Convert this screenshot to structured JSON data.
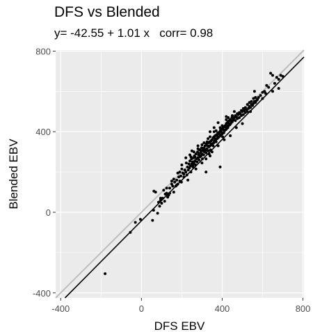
{
  "chart_data": {
    "type": "scatter",
    "title": "DFS vs Blended",
    "subtitle": "y= -42.55 + 1.01 x   corr= 0.98",
    "xlabel": "DFS EBV",
    "ylabel": "Blended EBV",
    "xlim": [
      -425,
      805
    ],
    "ylim": [
      -425,
      805
    ],
    "x_ticks": [
      -400,
      0,
      400,
      800
    ],
    "y_ticks": [
      -400,
      0,
      400,
      800
    ],
    "grid": true,
    "reference_line": {
      "name": "y = x",
      "intercept": 0,
      "slope": 1,
      "color": "#bdbdbd"
    },
    "regression_line": {
      "intercept": -42.55,
      "slope": 1.01,
      "color": "#000000"
    },
    "points_color": "#000000",
    "background_color": "#ebebeb",
    "points": [
      [
        -180,
        -305
      ],
      [
        -55,
        -100
      ],
      [
        -30,
        -50
      ],
      [
        -5,
        -35
      ],
      [
        55,
        -40
      ],
      [
        60,
        10
      ],
      [
        62,
        105
      ],
      [
        70,
        100
      ],
      [
        80,
        -5
      ],
      [
        85,
        50
      ],
      [
        90,
        30
      ],
      [
        95,
        60
      ],
      [
        100,
        45
      ],
      [
        105,
        70
      ],
      [
        110,
        110
      ],
      [
        118,
        90
      ],
      [
        125,
        120
      ],
      [
        130,
        75
      ],
      [
        140,
        95
      ],
      [
        150,
        140
      ],
      [
        155,
        130
      ],
      [
        160,
        100
      ],
      [
        165,
        150
      ],
      [
        170,
        130
      ],
      [
        175,
        160
      ],
      [
        180,
        140
      ],
      [
        185,
        175
      ],
      [
        190,
        155
      ],
      [
        195,
        180
      ],
      [
        198,
        150
      ],
      [
        200,
        215
      ],
      [
        205,
        195
      ],
      [
        210,
        175
      ],
      [
        215,
        210
      ],
      [
        220,
        200
      ],
      [
        222,
        245
      ],
      [
        225,
        185
      ],
      [
        228,
        225
      ],
      [
        232,
        210
      ],
      [
        235,
        240
      ],
      [
        238,
        220
      ],
      [
        240,
        255
      ],
      [
        243,
        230
      ],
      [
        245,
        200
      ],
      [
        248,
        265
      ],
      [
        250,
        240
      ],
      [
        253,
        250
      ],
      [
        255,
        225
      ],
      [
        258,
        270
      ],
      [
        260,
        245
      ],
      [
        262,
        280
      ],
      [
        265,
        255
      ],
      [
        268,
        235
      ],
      [
        270,
        290
      ],
      [
        272,
        265
      ],
      [
        275,
        250
      ],
      [
        278,
        300
      ],
      [
        280,
        270
      ],
      [
        283,
        285
      ],
      [
        285,
        260
      ],
      [
        288,
        310
      ],
      [
        290,
        275
      ],
      [
        292,
        295
      ],
      [
        295,
        280
      ],
      [
        298,
        320
      ],
      [
        300,
        290
      ],
      [
        302,
        265
      ],
      [
        305,
        305
      ],
      [
        308,
        285
      ],
      [
        310,
        320
      ],
      [
        312,
        300
      ],
      [
        315,
        330
      ],
      [
        318,
        310
      ],
      [
        320,
        295
      ],
      [
        322,
        340
      ],
      [
        325,
        315
      ],
      [
        328,
        330
      ],
      [
        330,
        305
      ],
      [
        332,
        345
      ],
      [
        335,
        325
      ],
      [
        338,
        350
      ],
      [
        340,
        330
      ],
      [
        342,
        310
      ],
      [
        345,
        355
      ],
      [
        348,
        335
      ],
      [
        350,
        360
      ],
      [
        352,
        340
      ],
      [
        355,
        370
      ],
      [
        358,
        345
      ],
      [
        360,
        375
      ],
      [
        362,
        355
      ],
      [
        365,
        380
      ],
      [
        368,
        360
      ],
      [
        370,
        350
      ],
      [
        372,
        385
      ],
      [
        375,
        365
      ],
      [
        378,
        395
      ],
      [
        380,
        370
      ],
      [
        382,
        390
      ],
      [
        385,
        375
      ],
      [
        388,
        400
      ],
      [
        390,
        380
      ],
      [
        392,
        410
      ],
      [
        395,
        385
      ],
      [
        398,
        415
      ],
      [
        400,
        390
      ],
      [
        402,
        375
      ],
      [
        405,
        420
      ],
      [
        408,
        395
      ],
      [
        410,
        425
      ],
      [
        412,
        405
      ],
      [
        415,
        430
      ],
      [
        418,
        410
      ],
      [
        420,
        440
      ],
      [
        422,
        415
      ],
      [
        425,
        445
      ],
      [
        428,
        420
      ],
      [
        430,
        450
      ],
      [
        432,
        430
      ],
      [
        435,
        455
      ],
      [
        438,
        435
      ],
      [
        440,
        460
      ],
      [
        442,
        440
      ],
      [
        445,
        445
      ],
      [
        448,
        470
      ],
      [
        450,
        450
      ],
      [
        455,
        460
      ],
      [
        460,
        470
      ],
      [
        465,
        455
      ],
      [
        470,
        475
      ],
      [
        475,
        465
      ],
      [
        480,
        485
      ],
      [
        485,
        470
      ],
      [
        490,
        490
      ],
      [
        495,
        480
      ],
      [
        500,
        500
      ],
      [
        505,
        485
      ],
      [
        510,
        505
      ],
      [
        515,
        495
      ],
      [
        520,
        510
      ],
      [
        525,
        500
      ],
      [
        530,
        515
      ],
      [
        535,
        525
      ],
      [
        540,
        520
      ],
      [
        545,
        535
      ],
      [
        550,
        530
      ],
      [
        555,
        540
      ],
      [
        560,
        550
      ],
      [
        565,
        545
      ],
      [
        570,
        555
      ],
      [
        575,
        560
      ],
      [
        580,
        570
      ],
      [
        590,
        580
      ],
      [
        600,
        595
      ],
      [
        610,
        600
      ],
      [
        620,
        630
      ],
      [
        630,
        620
      ],
      [
        640,
        690
      ],
      [
        650,
        680
      ],
      [
        660,
        640
      ],
      [
        670,
        670
      ],
      [
        680,
        660
      ],
      [
        690,
        680
      ],
      [
        700,
        675
      ],
      [
        150,
        155
      ],
      [
        200,
        235
      ],
      [
        240,
        285
      ],
      [
        260,
        300
      ],
      [
        300,
        335
      ],
      [
        330,
        365
      ],
      [
        360,
        400
      ],
      [
        390,
        420
      ],
      [
        420,
        460
      ],
      [
        450,
        480
      ],
      [
        280,
        315
      ],
      [
        310,
        345
      ],
      [
        340,
        375
      ],
      [
        370,
        405
      ],
      [
        400,
        430
      ],
      [
        430,
        470
      ],
      [
        230,
        160
      ],
      [
        270,
        215
      ],
      [
        300,
        245
      ],
      [
        320,
        265
      ],
      [
        350,
        300
      ],
      [
        380,
        330
      ],
      [
        410,
        360
      ],
      [
        440,
        380
      ],
      [
        470,
        420
      ],
      [
        500,
        440
      ],
      [
        220,
        270
      ],
      [
        250,
        305
      ],
      [
        280,
        330
      ],
      [
        340,
        400
      ],
      [
        360,
        420
      ],
      [
        380,
        445
      ],
      [
        420,
        475
      ],
      [
        460,
        500
      ],
      [
        540,
        500
      ],
      [
        560,
        600
      ],
      [
        600,
        565
      ],
      [
        615,
        590
      ],
      [
        650,
        600
      ],
      [
        680,
        615
      ],
      [
        320,
        200
      ],
      [
        390,
        225
      ],
      [
        340,
        280
      ],
      [
        290,
        310
      ],
      [
        265,
        275
      ],
      [
        335,
        290
      ],
      [
        180,
        195
      ],
      [
        125,
        95
      ],
      [
        95,
        70
      ],
      [
        115,
        55
      ],
      [
        135,
        85
      ],
      [
        140,
        120
      ],
      [
        160,
        165
      ],
      [
        175,
        135
      ],
      [
        190,
        200
      ],
      [
        210,
        190
      ],
      [
        245,
        275
      ],
      [
        255,
        235
      ],
      [
        285,
        290
      ],
      [
        295,
        305
      ],
      [
        305,
        310
      ],
      [
        315,
        305
      ],
      [
        325,
        350
      ],
      [
        345,
        340
      ],
      [
        355,
        330
      ],
      [
        365,
        365
      ],
      [
        375,
        380
      ],
      [
        385,
        395
      ],
      [
        395,
        400
      ],
      [
        405,
        410
      ],
      [
        415,
        425
      ],
      [
        425,
        430
      ],
      [
        435,
        440
      ],
      [
        445,
        455
      ],
      [
        455,
        465
      ],
      [
        465,
        480
      ],
      [
        475,
        490
      ],
      [
        485,
        495
      ],
      [
        495,
        505
      ],
      [
        505,
        515
      ],
      [
        515,
        520
      ],
      [
        525,
        535
      ],
      [
        535,
        545
      ],
      [
        545,
        550
      ],
      [
        555,
        565
      ],
      [
        565,
        570
      ]
    ]
  }
}
